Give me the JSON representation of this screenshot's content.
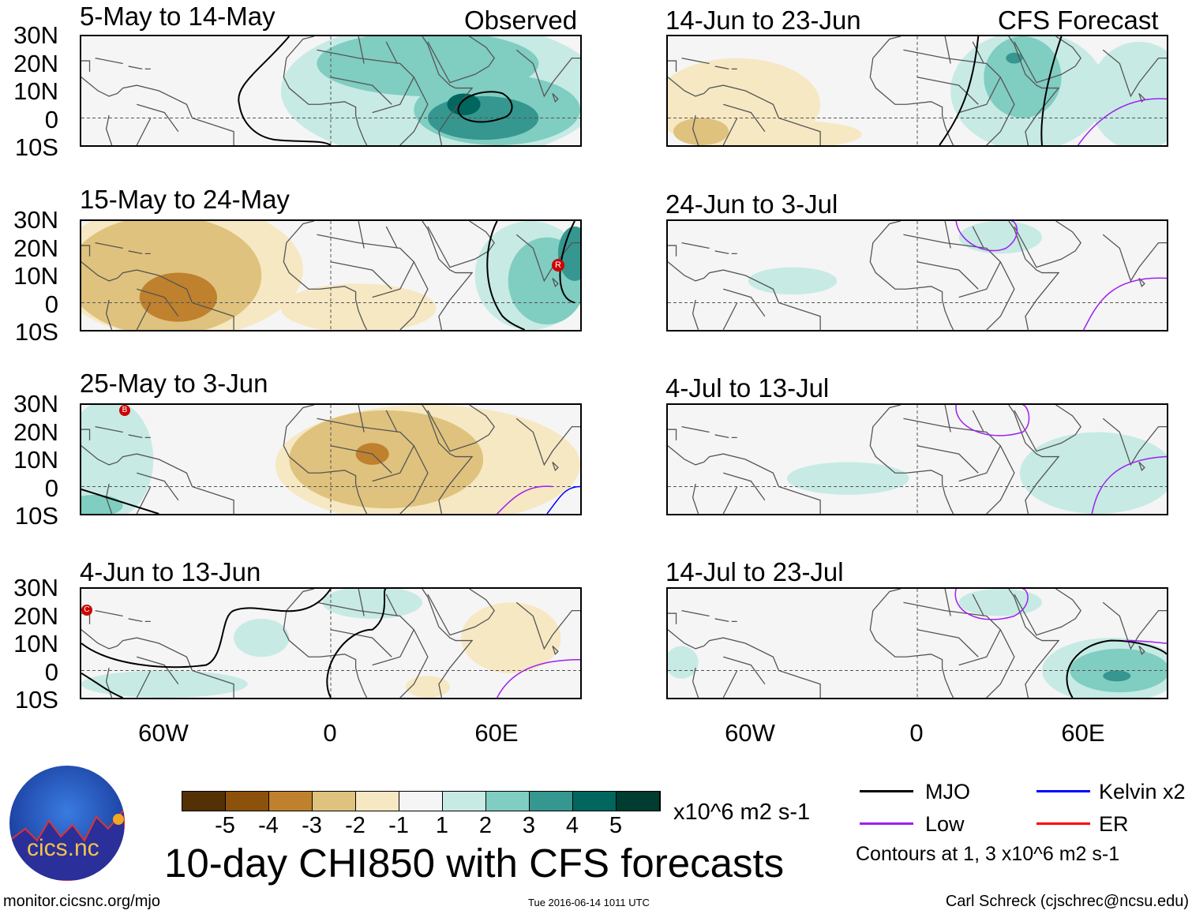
{
  "panels": [
    {
      "title": "5-May to 14-May",
      "corner": "Observed"
    },
    {
      "title": "14-Jun to 23-Jun",
      "corner": "CFS Forecast"
    },
    {
      "title": "15-May to 24-May",
      "marker": "R"
    },
    {
      "title": "24-Jun to 3-Jul"
    },
    {
      "title": "25-May to 3-Jun",
      "marker": "B"
    },
    {
      "title": "4-Jul to 13-Jul"
    },
    {
      "title": "4-Jun to 13-Jun",
      "marker": "C"
    },
    {
      "title": "14-Jul to 23-Jul"
    }
  ],
  "lat_labels": [
    "30N",
    "20N",
    "10N",
    "0",
    "10S"
  ],
  "lon_labels": [
    "60W",
    "0",
    "60E"
  ],
  "colorbar": {
    "levels": [
      "-5",
      "-4",
      "-3",
      "-2",
      "-1",
      "1",
      "2",
      "3",
      "4",
      "5"
    ],
    "colors": [
      "#543005",
      "#8c510a",
      "#bf812d",
      "#dfc27d",
      "#f6e8c3",
      "#f5f5f5",
      "#c7eae5",
      "#80cdc1",
      "#35978f",
      "#01665e",
      "#003c30"
    ],
    "units": "x10^6 m2 s-1"
  },
  "title": "10-day CHI850 with CFS forecasts",
  "legend": {
    "items": [
      {
        "label": "MJO",
        "color": "#000000"
      },
      {
        "label": "Kelvin x2",
        "color": "#0000ff"
      },
      {
        "label": "Low",
        "color": "#a020f0"
      },
      {
        "label": "ER",
        "color": "#ff0000"
      }
    ],
    "note": "Contours at 1, 3 x10^6 m2 s-1"
  },
  "logo": "cics.nc",
  "footer": {
    "left": "monitor.cicsnc.org/mjo",
    "center": "Tue 2016-06-14 1011 UTC",
    "right": "Carl Schreck (cjschrec@ncsu.edu)"
  }
}
